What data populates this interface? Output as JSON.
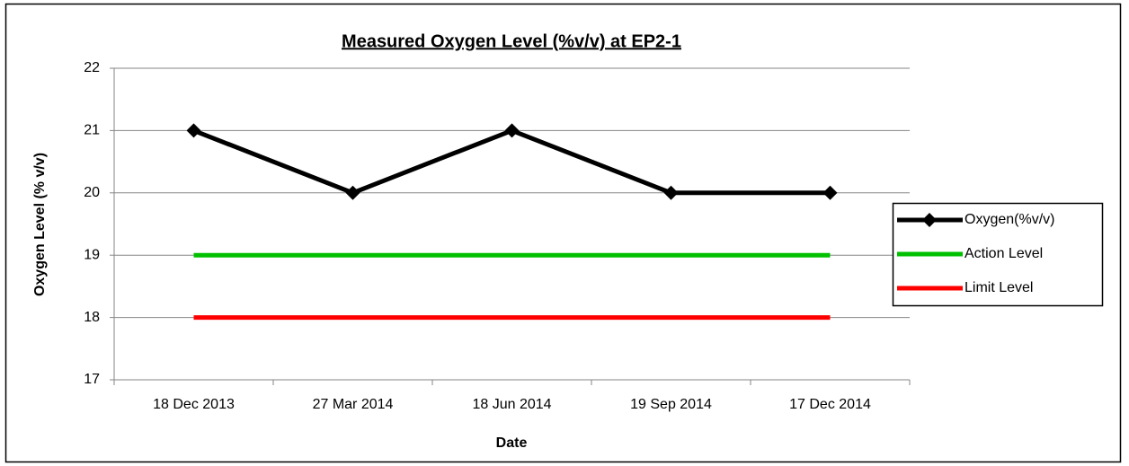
{
  "chart_data": {
    "type": "line",
    "title": "Measured Oxygen Level (%v/v) at EP2-1",
    "x_label": "Date",
    "y_label": "Oxygen Level (% v/v)",
    "categories": [
      "18 Dec 2013",
      "27 Mar 2014",
      "18 Jun 2014",
      "19 Sep 2014",
      "17 Dec 2014"
    ],
    "series": [
      {
        "name": "Oxygen(%v/v)",
        "color": "#000000",
        "marker": "diamond",
        "values": [
          21,
          20,
          21,
          20,
          20
        ]
      },
      {
        "name": "Action Level",
        "color": "#00c000",
        "values": [
          19,
          19,
          19,
          19,
          19
        ]
      },
      {
        "name": "Limit Level",
        "color": "#ff0000",
        "values": [
          18,
          18,
          18,
          18,
          18
        ]
      }
    ],
    "ylim": [
      17,
      22
    ],
    "yticks": [
      17,
      18,
      19,
      20,
      21,
      22
    ],
    "grid": true,
    "legend": "right"
  }
}
